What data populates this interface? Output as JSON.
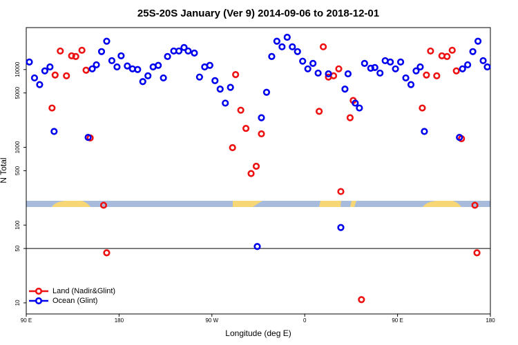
{
  "chart_data": {
    "type": "scatter",
    "title": "25S-20S January (Ver 9)   2014-09-06 to 2018-12-01",
    "x_label": "Longitude (deg E)",
    "y_label": "N Total",
    "log_y": true,
    "legend": "bottom left",
    "reference_line": 50,
    "xlim": [
      90,
      540
    ],
    "xticks": [
      {
        "value": 90,
        "label": "90 E"
      },
      {
        "value": 180,
        "label": "180"
      },
      {
        "value": 270,
        "label": "90 W"
      },
      {
        "value": 360,
        "label": "0"
      },
      {
        "value": 450,
        "label": "90 E"
      },
      {
        "value": 540,
        "label": "180"
      }
    ],
    "ylim": [
      7.2,
      34600
    ],
    "yticks": [
      10,
      50,
      100,
      500,
      1000,
      5000,
      10000
    ],
    "series": [
      {
        "name": "Land (Nadir&Glint)",
        "color": "#ee1111",
        "x": [
          115,
          118,
          123,
          129,
          134,
          138,
          144,
          148,
          152,
          165,
          168,
          290,
          293,
          298,
          303,
          308,
          313,
          318,
          374,
          378,
          383,
          388,
          393,
          395,
          404,
          407,
          415,
          474,
          478,
          482,
          488,
          493,
          498,
          503,
          507,
          512,
          525,
          527
        ],
        "values": [
          3200,
          8500,
          17300,
          8300,
          15000,
          14700,
          17700,
          9800,
          1320,
          180,
          44,
          990,
          8600,
          3000,
          1750,
          460,
          570,
          1490,
          2900,
          19600,
          8000,
          8300,
          10200,
          270,
          2400,
          4000,
          11,
          3200,
          8500,
          17300,
          8300,
          15000,
          14700,
          17700,
          9600,
          1290,
          180,
          44
        ]
      },
      {
        "name": "Ocean (Glint)",
        "color": "#0000ee",
        "x": [
          93,
          98,
          103,
          108,
          113,
          117,
          150,
          154,
          158,
          163,
          168,
          173,
          178,
          182,
          188,
          193,
          198,
          203,
          208,
          213,
          218,
          223,
          227,
          233,
          238,
          243,
          247,
          253,
          258,
          263,
          268,
          273,
          278,
          283,
          288,
          314,
          318,
          323,
          328,
          333,
          338,
          343,
          348,
          353,
          358,
          363,
          368,
          373,
          383,
          395,
          399,
          402,
          409,
          413,
          418,
          424,
          428,
          433,
          438,
          443,
          448,
          453,
          458,
          463,
          468,
          472,
          476,
          510,
          513,
          518,
          523,
          528,
          533,
          537
        ],
        "values": [
          12500,
          7800,
          6400,
          9600,
          10800,
          1600,
          1340,
          10200,
          11500,
          17000,
          23100,
          13000,
          10800,
          15000,
          11100,
          10200,
          10000,
          7000,
          8300,
          10800,
          11300,
          7800,
          14700,
          17300,
          17300,
          19200,
          17300,
          16300,
          8000,
          10800,
          11300,
          7200,
          5600,
          3700,
          5900,
          53,
          2400,
          5100,
          14700,
          23100,
          19600,
          26000,
          19600,
          17000,
          12800,
          10200,
          12000,
          9000,
          8800,
          93,
          5600,
          8800,
          3700,
          3200,
          12000,
          10400,
          10600,
          9000,
          13000,
          12500,
          10200,
          12500,
          7800,
          6400,
          9600,
          10800,
          1600,
          1340,
          10200,
          11500,
          17000,
          23100,
          13000,
          10800
        ]
      }
    ]
  }
}
